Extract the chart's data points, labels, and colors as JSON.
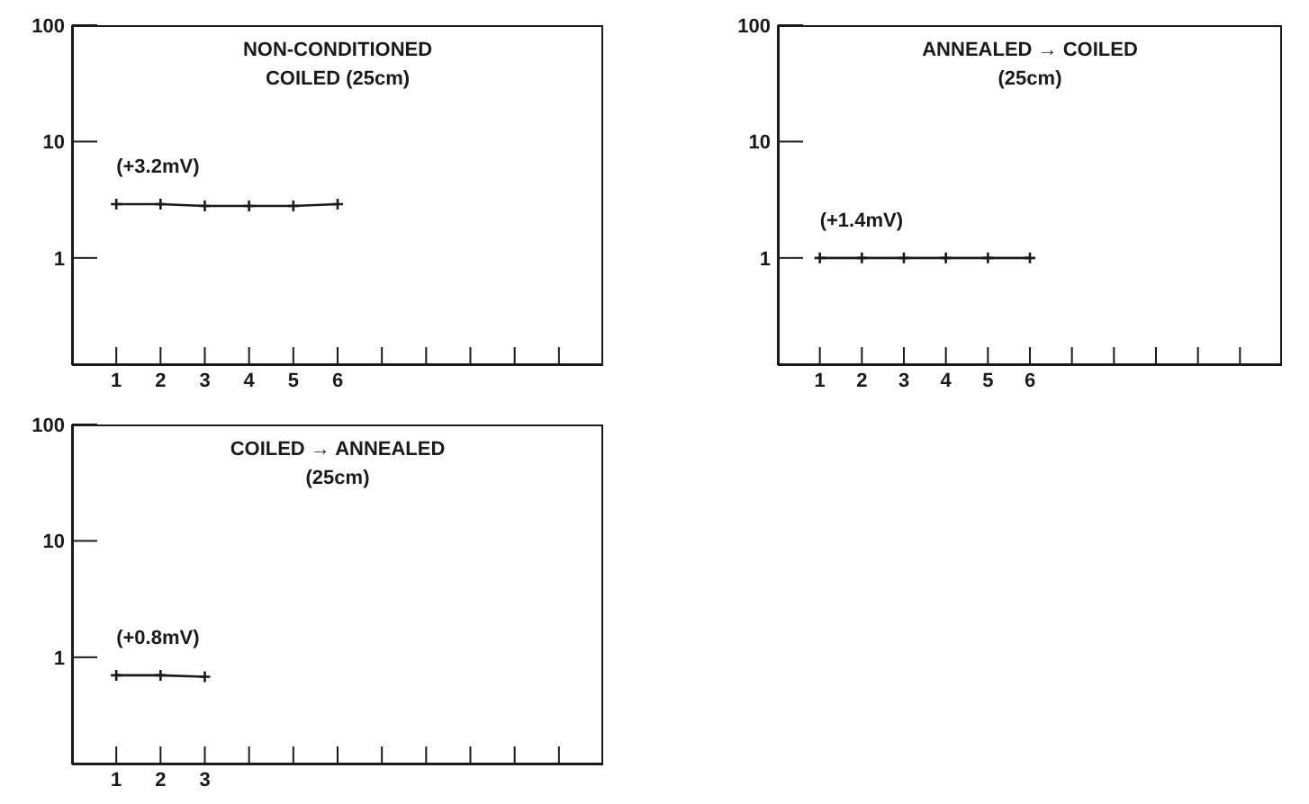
{
  "chart_data": [
    {
      "type": "line",
      "title": "NON-CONDITIONED\nCOILED (25cm)",
      "x": [
        1,
        2,
        3,
        4,
        5,
        6
      ],
      "values": [
        2.9,
        2.9,
        2.8,
        2.8,
        2.8,
        2.9
      ],
      "color": "#1a1a1a",
      "marker": "cross",
      "log": "y",
      "xlim": [
        0,
        12
      ],
      "xticks": [
        1,
        2,
        3,
        4,
        5,
        6,
        {
          "value": 7,
          "label": null
        },
        {
          "value": 8,
          "label": null
        },
        {
          "value": 9,
          "label": null
        },
        {
          "value": 10,
          "label": null
        },
        {
          "value": 11,
          "label": null
        }
      ],
      "ylim": [
        0.12,
        100
      ],
      "yticks": [
        1,
        10,
        100
      ],
      "annotations": [
        "(+3.2mV)"
      ]
    },
    {
      "type": "line",
      "title": "ANNEALED → COILED\n(25cm)",
      "x": [
        1,
        2,
        3,
        4,
        5,
        6
      ],
      "values": [
        1.0,
        1.0,
        1.0,
        1.0,
        1.0,
        1.0
      ],
      "color": "#1a1a1a",
      "marker": "cross",
      "log": "y",
      "xlim": [
        0,
        12
      ],
      "xticks": [
        1,
        2,
        3,
        4,
        5,
        6,
        {
          "value": 7,
          "label": null
        },
        {
          "value": 8,
          "label": null
        },
        {
          "value": 9,
          "label": null
        },
        {
          "value": 10,
          "label": null
        },
        {
          "value": 11,
          "label": null
        }
      ],
      "ylim": [
        0.12,
        100
      ],
      "yticks": [
        1,
        10,
        100
      ],
      "annotations": [
        "(+1.4mV)"
      ]
    },
    {
      "type": "line",
      "title": "COILED → ANNEALED\n(25cm)",
      "x": [
        1,
        2,
        3
      ],
      "values": [
        0.7,
        0.7,
        0.68
      ],
      "color": "#1a1a1a",
      "marker": "cross",
      "log": "y",
      "xlim": [
        0,
        12
      ],
      "xticks": [
        1,
        2,
        3,
        {
          "value": 4,
          "label": null
        },
        {
          "value": 5,
          "label": null
        },
        {
          "value": 6,
          "label": null
        },
        {
          "value": 7,
          "label": null
        },
        {
          "value": 8,
          "label": null
        },
        {
          "value": 9,
          "label": null
        },
        {
          "value": 10,
          "label": null
        },
        {
          "value": 11,
          "label": null
        }
      ],
      "ylim": [
        0.12,
        100
      ],
      "yticks": [
        1,
        10,
        100
      ],
      "annotations": [
        "(+0.8mV)"
      ]
    }
  ]
}
